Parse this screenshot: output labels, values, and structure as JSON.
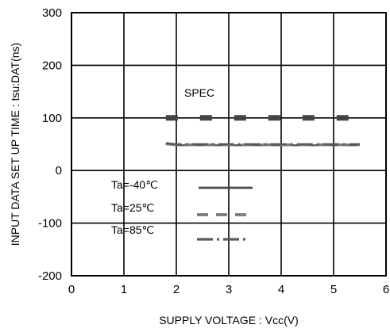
{
  "chart_data": {
    "type": "line",
    "xlabel": "SUPPLY VOLTAGE : Vcc(V)",
    "ylabel": "INPUT DATA SET UP TIME : tsu:DAT(ns)",
    "xlim": [
      0,
      6
    ],
    "ylim": [
      -200,
      300
    ],
    "x_ticks": [
      "0",
      "1",
      "2",
      "3",
      "4",
      "5",
      "6"
    ],
    "y_ticks": [
      "300",
      "200",
      "100",
      "0",
      "-100",
      "-200"
    ],
    "grid": true,
    "annotations": [
      {
        "text": "SPEC"
      }
    ],
    "spec": {
      "x": [
        1.8,
        5.5
      ],
      "values": [
        100,
        100
      ]
    },
    "series": [
      {
        "name": "Ta=-40℃",
        "style": "solid",
        "x": [
          1.8,
          2.0,
          3.0,
          4.0,
          5.0,
          5.5
        ],
        "values": [
          50,
          48,
          48,
          48,
          48,
          48
        ]
      },
      {
        "name": "Ta=25℃",
        "style": "dashed",
        "x": [
          1.8,
          2.0,
          3.0,
          4.0,
          5.0,
          5.5
        ],
        "values": [
          51,
          49,
          49,
          49,
          49,
          49
        ]
      },
      {
        "name": "Ta=85℃",
        "style": "dashdot",
        "x": [
          1.8,
          2.0,
          3.0,
          4.0,
          5.0,
          5.5
        ],
        "values": [
          52,
          50,
          50,
          50,
          50,
          50
        ]
      }
    ]
  }
}
